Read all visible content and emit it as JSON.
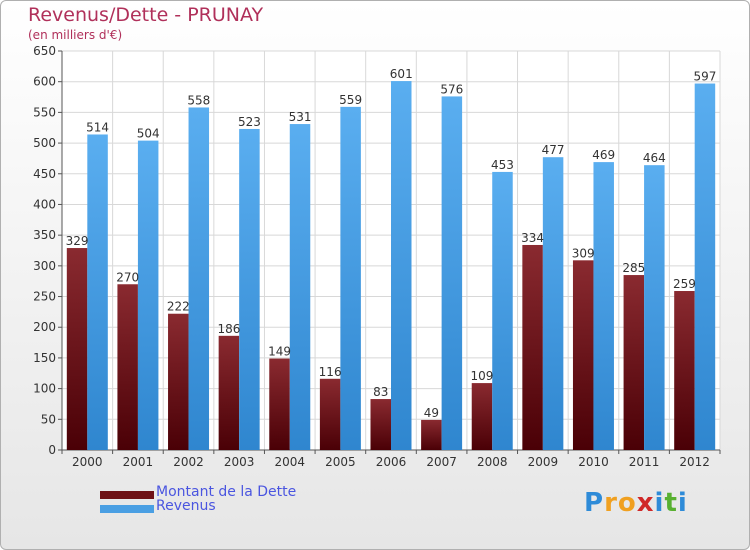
{
  "title": "Revenus/Dette - PRUNAY",
  "subtitle": "(en milliers d'€)",
  "logo": {
    "text": "Proxiti",
    "letters": [
      {
        "ch": "P",
        "color": "#2e8bd8"
      },
      {
        "ch": "r",
        "color": "#f0a020"
      },
      {
        "ch": "o",
        "color": "#f0a020"
      },
      {
        "ch": "x",
        "color": "#d02828"
      },
      {
        "ch": "i",
        "color": "#2e8bd8"
      },
      {
        "ch": "t",
        "color": "#58b030"
      },
      {
        "ch": "i",
        "color": "#2e8bd8"
      }
    ]
  },
  "colors": {
    "debt": "#6e1014",
    "revenue": "#4a9fe3",
    "title": "#b0305a",
    "legend_text": "#4a55e0"
  },
  "chart_data": {
    "type": "bar",
    "title": "Revenus/Dette - PRUNAY",
    "subtitle": "(en milliers d'€)",
    "categories": [
      "2000",
      "2001",
      "2002",
      "2003",
      "2004",
      "2005",
      "2006",
      "2007",
      "2008",
      "2009",
      "2010",
      "2011",
      "2012"
    ],
    "series": [
      {
        "name": "Montant de la Dette",
        "values": [
          329,
          270,
          222,
          186,
          149,
          116,
          83,
          49,
          109,
          334,
          309,
          285,
          259
        ]
      },
      {
        "name": "Revenus",
        "values": [
          514,
          504,
          558,
          523,
          531,
          559,
          601,
          576,
          453,
          477,
          469,
          464,
          597
        ]
      }
    ],
    "ylim": [
      0,
      650
    ],
    "yticks": [
      0,
      50,
      100,
      150,
      200,
      250,
      300,
      350,
      400,
      450,
      500,
      550,
      600,
      650
    ],
    "grid": true,
    "legend": "bottom-left"
  }
}
